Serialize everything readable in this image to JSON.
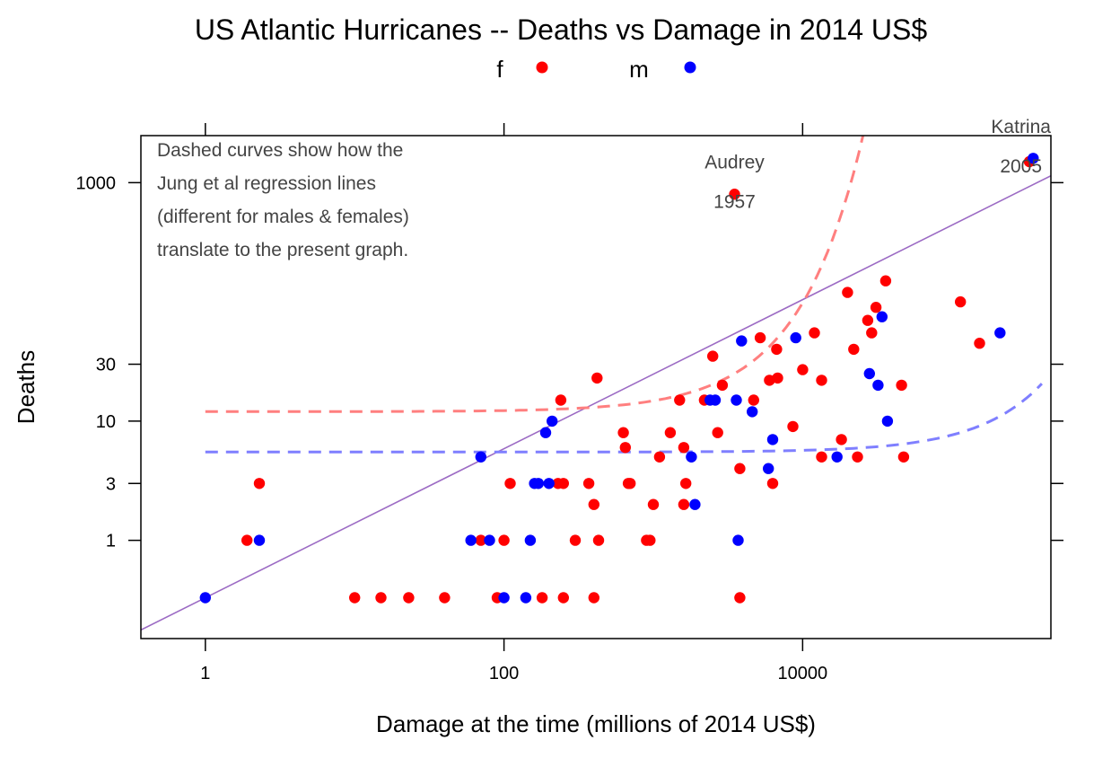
{
  "chart_data": {
    "type": "scatter",
    "title": "US Atlantic Hurricanes -- Deaths vs Damage in 2014 US$",
    "xlabel": "Damage at the time (millions of 2014 US$)",
    "ylabel": "Deaths",
    "x_scale": "log",
    "y_scale": "log",
    "xlim": [
      0.37,
      460000
    ],
    "ylim": [
      0.15,
      2480
    ],
    "x_ticks": [
      {
        "value": 1,
        "label": "1"
      },
      {
        "value": 100,
        "label": "100"
      },
      {
        "value": 10000,
        "label": "10000"
      }
    ],
    "y_ticks": [
      {
        "value": 1,
        "label": "1"
      },
      {
        "value": 3,
        "label": "3"
      },
      {
        "value": 10,
        "label": "10"
      },
      {
        "value": 30,
        "label": "30"
      },
      {
        "value": 1000,
        "label": "1000"
      }
    ],
    "legend": {
      "placement": "top",
      "entries": [
        {
          "label": "f",
          "color": "#ff0000"
        },
        {
          "label": "m",
          "color": "#0000ff"
        }
      ]
    },
    "note_lines": [
      "Dashed curves show how the",
      "Jung et al regression lines",
      "(different for males & females)",
      "translate to the present graph."
    ],
    "labels": [
      {
        "x": 3500,
        "y": 1030,
        "lines": [
          "Audrey",
          "1957"
        ]
      },
      {
        "x": 290000,
        "y": 2050,
        "lines": [
          "Katrina",
          "2005"
        ]
      }
    ],
    "series": [
      {
        "name": "f",
        "color": "#ff0000",
        "points": [
          [
            1.9,
            1
          ],
          [
            2.3,
            3
          ],
          [
            10,
            0.33
          ],
          [
            15,
            0.33
          ],
          [
            23,
            0.33
          ],
          [
            70,
            1
          ],
          [
            100,
            1
          ],
          [
            110,
            3
          ],
          [
            40,
            0.33
          ],
          [
            90,
            0.33
          ],
          [
            180,
            0.33
          ],
          [
            250,
            0.33
          ],
          [
            230,
            3
          ],
          [
            240,
            15
          ],
          [
            250,
            3
          ],
          [
            300,
            1
          ],
          [
            370,
            3
          ],
          [
            400,
            0.33
          ],
          [
            400,
            2
          ],
          [
            420,
            23
          ],
          [
            430,
            1
          ],
          [
            630,
            8
          ],
          [
            650,
            6
          ],
          [
            680,
            3
          ],
          [
            700,
            3
          ],
          [
            900,
            1
          ],
          [
            950,
            1
          ],
          [
            1000,
            2
          ],
          [
            1100,
            5
          ],
          [
            1300,
            8
          ],
          [
            1500,
            15
          ],
          [
            1600,
            6
          ],
          [
            1600,
            2
          ],
          [
            1650,
            3
          ],
          [
            3800,
            0.33
          ],
          [
            2200,
            15
          ],
          [
            2500,
            35
          ],
          [
            2700,
            8
          ],
          [
            2900,
            20
          ],
          [
            4700,
            15
          ],
          [
            3500,
            800
          ],
          [
            3800,
            4
          ],
          [
            5200,
            50
          ],
          [
            6300,
            3
          ],
          [
            6000,
            22
          ],
          [
            6700,
            40
          ],
          [
            6800,
            23
          ],
          [
            8600,
            9
          ],
          [
            10000,
            27
          ],
          [
            12000,
            55
          ],
          [
            13400,
            5
          ],
          [
            13400,
            22
          ],
          [
            20000,
            120
          ],
          [
            22000,
            40
          ],
          [
            18200,
            7
          ],
          [
            23300,
            5
          ],
          [
            27300,
            70
          ],
          [
            29000,
            55
          ],
          [
            31000,
            90
          ],
          [
            36000,
            150
          ],
          [
            47500,
            5
          ],
          [
            46000,
            20
          ],
          [
            114000,
            100
          ],
          [
            153000,
            45
          ],
          [
            330000,
            1500
          ]
        ]
      },
      {
        "name": "m",
        "color": "#0000ff",
        "points": [
          [
            1,
            0.33
          ],
          [
            2.3,
            1
          ],
          [
            70,
            5
          ],
          [
            60,
            1
          ],
          [
            80,
            1
          ],
          [
            100,
            0.33
          ],
          [
            140,
            0.33
          ],
          [
            160,
            3
          ],
          [
            170,
            3
          ],
          [
            190,
            8
          ],
          [
            210,
            10
          ],
          [
            200,
            3
          ],
          [
            150,
            1
          ],
          [
            1900,
            2
          ],
          [
            1800,
            5
          ],
          [
            2400,
            15
          ],
          [
            2600,
            15
          ],
          [
            3600,
            15
          ],
          [
            3900,
            47
          ],
          [
            3700,
            1
          ],
          [
            4600,
            12
          ],
          [
            5900,
            4
          ],
          [
            6300,
            7
          ],
          [
            9000,
            50
          ],
          [
            17000,
            5
          ],
          [
            28000,
            25
          ],
          [
            32000,
            20
          ],
          [
            34000,
            75
          ],
          [
            37000,
            10
          ],
          [
            210000,
            55
          ],
          [
            350000,
            1600
          ]
        ]
      }
    ],
    "fits": [
      {
        "name": "f",
        "color": "#ff7f7f",
        "style": "dashed",
        "a": 12,
        "b": 0.00021
      },
      {
        "name": "m",
        "color": "#7f7fff",
        "style": "dashed",
        "a": 5.5,
        "b": 3.3e-06
      }
    ],
    "reference_line": {
      "color": "#9c6bc4",
      "slope_loglog": 0.625,
      "intercept_y_at_x1": 0.33
    }
  }
}
